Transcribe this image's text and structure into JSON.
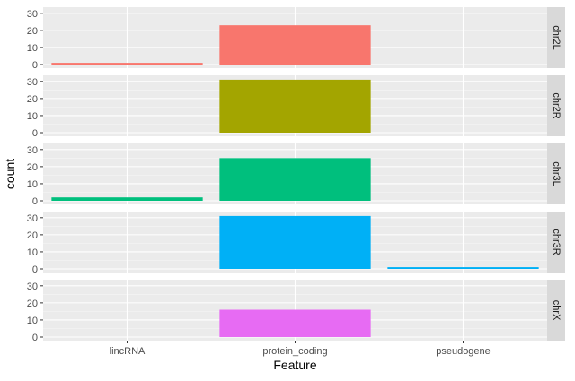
{
  "chart_data": {
    "type": "bar",
    "xlabel": "Feature",
    "ylabel": "count",
    "categories": [
      "lincRNA",
      "protein_coding",
      "pseudogene"
    ],
    "ylim": [
      0,
      32
    ],
    "yticks": [
      0,
      10,
      20,
      30
    ],
    "facets": [
      {
        "name": "chr2L",
        "color": "#F8766D",
        "values": [
          1,
          23,
          0
        ]
      },
      {
        "name": "chr2R",
        "color": "#A3A500",
        "values": [
          0,
          31,
          0
        ]
      },
      {
        "name": "chr3L",
        "color": "#00BF7D",
        "values": [
          2,
          25,
          0
        ]
      },
      {
        "name": "chr3R",
        "color": "#00B0F6",
        "values": [
          0,
          31,
          1
        ]
      },
      {
        "name": "chrX",
        "color": "#E76BF3",
        "values": [
          0,
          16,
          0
        ]
      }
    ],
    "panel_background": "#EBEBEB",
    "strip_background": "#D9D9D9",
    "grid": true,
    "legend": "none"
  }
}
